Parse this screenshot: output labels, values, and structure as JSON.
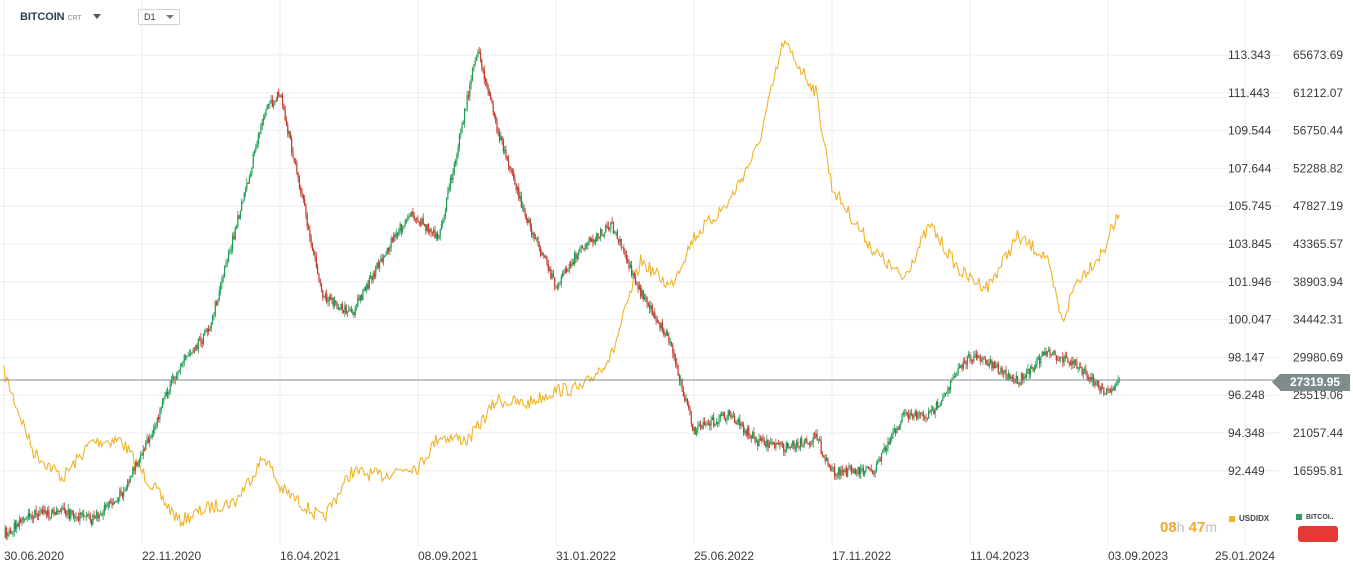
{
  "header": {
    "symbol": "BITCOIN",
    "symbol_sub": "CRT",
    "timeframe": "D1"
  },
  "last_price": "27319.95",
  "timer": {
    "hours": "08",
    "h_unit": "h",
    "minutes": "47",
    "m_unit": "m"
  },
  "legend": [
    {
      "name": "USDIDX",
      "color": "#f0b429"
    },
    {
      "name": "BITCOI..",
      "color": "#2e9e6b"
    }
  ],
  "colors": {
    "up": "#1f9d55",
    "down": "#c0392b",
    "usdidx": "#f0b429",
    "grid": "#eeeeee",
    "last_line": "#7f8c8d",
    "alert_button": "#e53935"
  },
  "chart_data": {
    "type": "line",
    "x_ticks": [
      "30.06.2020",
      "22.11.2020",
      "16.04.2021",
      "08.09.2021",
      "31.01.2022",
      "25.06.2022",
      "17.11.2022",
      "11.04.2023",
      "03.09.2023",
      "25.01.2024"
    ],
    "usdidx_axis_ticks": [
      "113.343",
      "111.443",
      "109.544",
      "107.644",
      "105.745",
      "103.845",
      "101.946",
      "100.047",
      "98.147",
      "96.248",
      "94.348",
      "92.449"
    ],
    "bitcoin_axis_ticks": [
      "65673.69",
      "61212.07",
      "56750.44",
      "52288.82",
      "47827.19",
      "43365.57",
      "38903.94",
      "34442.31",
      "29980.69",
      "25519.06",
      "21057.44",
      "16595.81"
    ],
    "series": [
      {
        "name": "BITCOIN",
        "axis": "right",
        "points": [
          [
            "30.06.2020",
            9200
          ],
          [
            "31.07.2020",
            11400
          ],
          [
            "31.08.2020",
            11700
          ],
          [
            "30.09.2020",
            10800
          ],
          [
            "31.10.2020",
            13800
          ],
          [
            "22.11.2020",
            18400
          ],
          [
            "31.12.2020",
            29000
          ],
          [
            "31.01.2021",
            33000
          ],
          [
            "28.02.2021",
            45000
          ],
          [
            "31.03.2021",
            58900
          ],
          [
            "16.04.2021",
            61200
          ],
          [
            "31.05.2021",
            37300
          ],
          [
            "30.06.2021",
            35000
          ],
          [
            "31.07.2021",
            41500
          ],
          [
            "31.08.2021",
            47100
          ],
          [
            "08.09.2021",
            46400
          ],
          [
            "30.09.2021",
            43800
          ],
          [
            "31.10.2021",
            61300
          ],
          [
            "10.11.2021",
            66500
          ],
          [
            "30.11.2021",
            57000
          ],
          [
            "31.12.2021",
            46300
          ],
          [
            "31.01.2022",
            38500
          ],
          [
            "28.02.2022",
            43200
          ],
          [
            "31.03.2022",
            45500
          ],
          [
            "30.04.2022",
            37700
          ],
          [
            "31.05.2022",
            31800
          ],
          [
            "25.06.2022",
            21200
          ],
          [
            "31.07.2022",
            23300
          ],
          [
            "31.08.2022",
            20000
          ],
          [
            "30.09.2022",
            19400
          ],
          [
            "31.10.2022",
            20500
          ],
          [
            "17.11.2022",
            16600
          ],
          [
            "31.12.2022",
            16500
          ],
          [
            "31.01.2023",
            23100
          ],
          [
            "28.02.2023",
            23100
          ],
          [
            "31.03.2023",
            28500
          ],
          [
            "11.04.2023",
            30200
          ],
          [
            "30.04.2023",
            29300
          ],
          [
            "31.05.2023",
            27200
          ],
          [
            "30.06.2023",
            30500
          ],
          [
            "31.07.2023",
            29200
          ],
          [
            "31.08.2023",
            26000
          ],
          [
            "03.09.2023",
            25900
          ],
          [
            "15.09.2023",
            27320
          ]
        ]
      },
      {
        "name": "USDIDX",
        "axis": "left",
        "points": [
          [
            "30.06.2020",
            97.4
          ],
          [
            "31.07.2020",
            93.4
          ],
          [
            "31.08.2020",
            92.1
          ],
          [
            "30.09.2020",
            93.9
          ],
          [
            "31.10.2020",
            94.0
          ],
          [
            "22.11.2020",
            92.4
          ],
          [
            "31.12.2020",
            89.9
          ],
          [
            "31.01.2021",
            90.6
          ],
          [
            "28.02.2021",
            90.9
          ],
          [
            "31.03.2021",
            93.2
          ],
          [
            "16.04.2021",
            91.6
          ],
          [
            "31.05.2021",
            90.0
          ],
          [
            "30.06.2021",
            92.4
          ],
          [
            "31.07.2021",
            92.2
          ],
          [
            "31.08.2021",
            92.7
          ],
          [
            "08.09.2021",
            92.6
          ],
          [
            "30.09.2021",
            94.2
          ],
          [
            "31.10.2021",
            94.0
          ],
          [
            "30.11.2021",
            96.0
          ],
          [
            "31.12.2021",
            95.8
          ],
          [
            "31.01.2022",
            96.5
          ],
          [
            "28.02.2022",
            96.6
          ],
          [
            "31.03.2022",
            98.3
          ],
          [
            "30.04.2022",
            103.0
          ],
          [
            "31.05.2022",
            101.7
          ],
          [
            "25.06.2022",
            104.2
          ],
          [
            "31.07.2022",
            105.9
          ],
          [
            "31.08.2022",
            108.7
          ],
          [
            "27.09.2022",
            114.0
          ],
          [
            "31.10.2022",
            111.5
          ],
          [
            "17.11.2022",
            106.7
          ],
          [
            "31.12.2022",
            103.5
          ],
          [
            "31.01.2023",
            102.1
          ],
          [
            "28.02.2023",
            104.8
          ],
          [
            "31.03.2023",
            102.5
          ],
          [
            "11.04.2023",
            102.1
          ],
          [
            "30.04.2023",
            101.7
          ],
          [
            "31.05.2023",
            104.2
          ],
          [
            "30.06.2023",
            103.2
          ],
          [
            "17.07.2023",
            99.9
          ],
          [
            "31.07.2023",
            101.9
          ],
          [
            "31.08.2023",
            103.6
          ],
          [
            "03.09.2023",
            104.2
          ],
          [
            "15.09.2023",
            105.3
          ]
        ]
      }
    ],
    "x_range": [
      "30.06.2020",
      "25.01.2024"
    ],
    "usdidx_range": [
      90.0,
      114.2
    ],
    "bitcoin_range": [
      9200,
      67000
    ],
    "grid": true,
    "legend_position": "bottom-right"
  }
}
